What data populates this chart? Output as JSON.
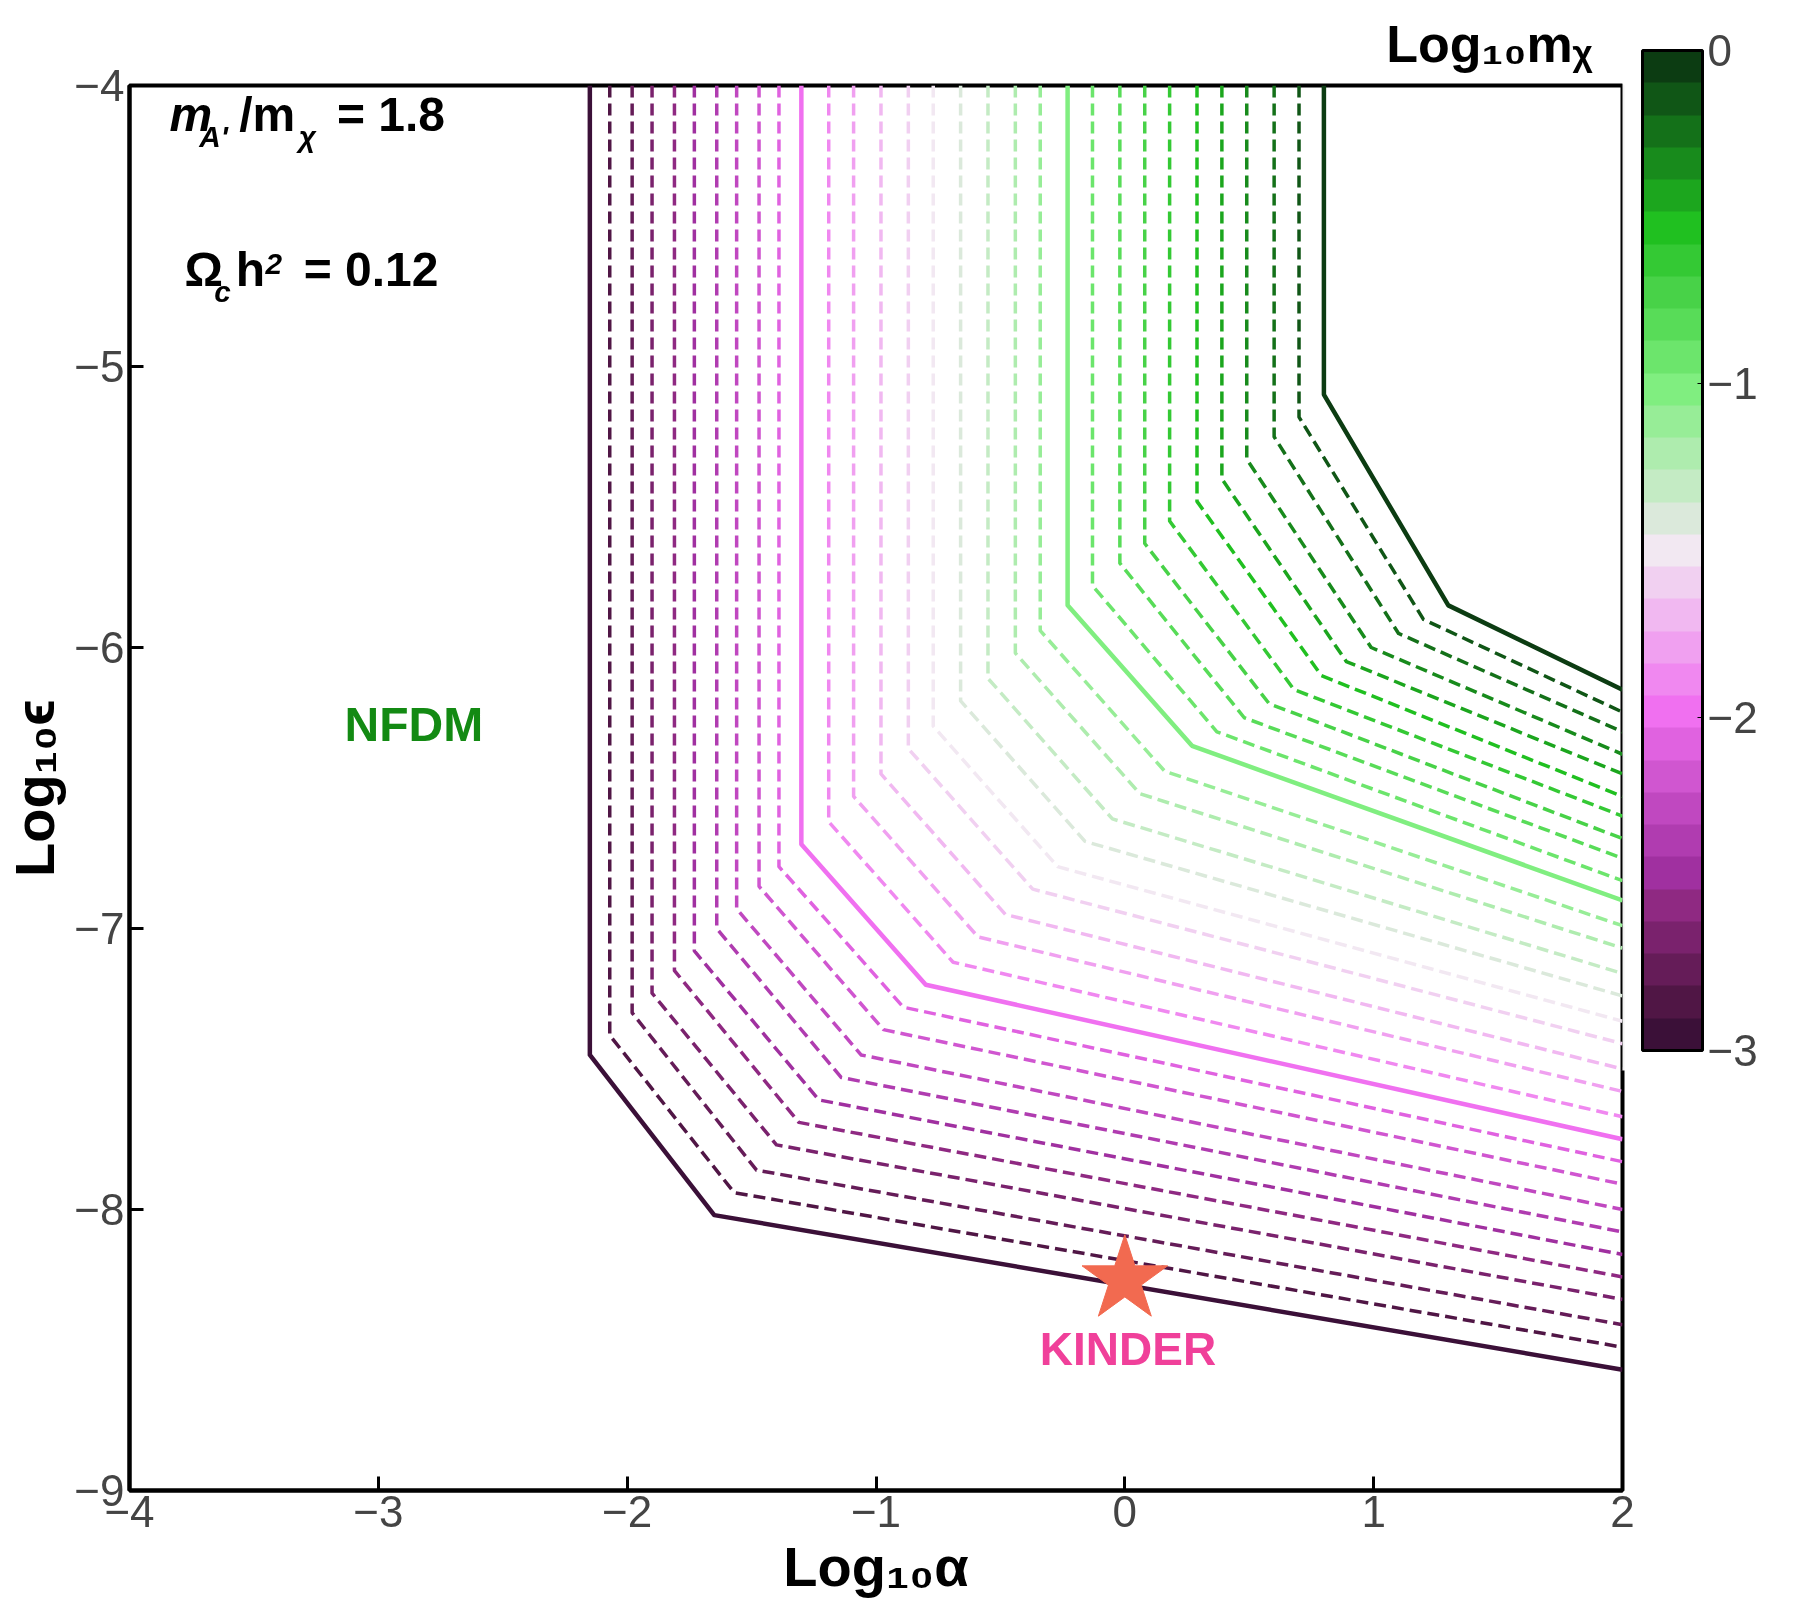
{
  "chart_data": {
    "type": "line",
    "xlabel": "Log₁₀α",
    "ylabel": "Log₁₀ϵ",
    "clabel": "Log₁₀mᵪ",
    "xlim": [
      -4,
      2
    ],
    "ylim": [
      -9,
      -4
    ],
    "xticks": [
      {
        "value": -4,
        "label": "−4"
      },
      {
        "value": -3,
        "label": "−3"
      },
      {
        "value": -2,
        "label": "−2"
      },
      {
        "value": -1,
        "label": "−1"
      },
      0,
      1,
      2
    ],
    "yticks": [
      {
        "value": -9,
        "label": "−9"
      },
      {
        "value": -8,
        "label": "−8"
      },
      {
        "value": -7,
        "label": "−7"
      },
      {
        "value": -6,
        "label": "−6"
      },
      {
        "value": -5,
        "label": "−5"
      },
      {
        "value": -4,
        "label": "−4"
      }
    ],
    "clim": [
      -3,
      0
    ],
    "cticks": [
      -3,
      -2,
      -1,
      0
    ],
    "grid": false,
    "line_style": "dashed",
    "annotations": [
      "m$_{A'}$/m$_{χ}$ = 1.8",
      "Ω$_{c}$h$^{2}$ = 0.12",
      "NFDM"
    ],
    "series": [
      {
        "color": "#3b1038",
        "line_style": "solid",
        "x": [
          -2.15,
          -2.15,
          -1.65,
          2
        ],
        "values": [
          -4,
          -7.45,
          -8.02,
          -8.57
        ]
      },
      {
        "color": "#501645",
        "x": [
          -2.07,
          -2.07,
          -1.57,
          2
        ],
        "values": [
          -4,
          -7.38,
          -7.94,
          -8.49
        ]
      },
      {
        "color": "#651c58",
        "x": [
          -1.98,
          -1.98,
          -1.48,
          2
        ],
        "values": [
          -4,
          -7.3,
          -7.86,
          -8.41
        ]
      },
      {
        "color": "#7a226d",
        "x": [
          -1.9,
          -1.9,
          -1.4,
          2
        ],
        "values": [
          -4,
          -7.23,
          -7.77,
          -8.32
        ]
      },
      {
        "color": "#8f2982",
        "x": [
          -1.81,
          -1.81,
          -1.31,
          2
        ],
        "values": [
          -4,
          -7.15,
          -7.69,
          -8.24
        ]
      },
      {
        "color": "#a030a0",
        "x": [
          -1.73,
          -1.73,
          -1.23,
          2
        ],
        "values": [
          -4,
          -7.08,
          -7.61,
          -8.16
        ]
      },
      {
        "color": "#b03cb0",
        "x": [
          -1.64,
          -1.64,
          -1.14,
          2
        ],
        "values": [
          -4,
          -7.0,
          -7.53,
          -8.08
        ]
      },
      {
        "color": "#c048c0",
        "x": [
          -1.56,
          -1.56,
          -1.06,
          2
        ],
        "values": [
          -4,
          -6.93,
          -7.45,
          -8.0
        ]
      },
      {
        "color": "#d056d0",
        "x": [
          -1.47,
          -1.47,
          -0.97,
          2
        ],
        "values": [
          -4,
          -6.85,
          -7.36,
          -7.91
        ]
      },
      {
        "color": "#e062e0",
        "x": [
          -1.39,
          -1.39,
          -0.89,
          2
        ],
        "values": [
          -4,
          -6.78,
          -7.28,
          -7.83
        ]
      },
      {
        "color": "#f070f0",
        "line_style": "solid",
        "x": [
          -1.3,
          -1.3,
          -0.8,
          2
        ],
        "values": [
          -4,
          -6.7,
          -7.2,
          -7.75
        ]
      },
      {
        "color": "#f088f0",
        "x": [
          -1.19,
          -1.19,
          -0.69,
          2
        ],
        "values": [
          -4,
          -6.62,
          -7.12,
          -7.67
        ]
      },
      {
        "color": "#f0a0f0",
        "x": [
          -1.09,
          -1.09,
          -0.59,
          2
        ],
        "values": [
          -4,
          -6.53,
          -7.03,
          -7.58
        ]
      },
      {
        "color": "#f1b8f1",
        "x": [
          -0.98,
          -0.98,
          -0.48,
          2
        ],
        "values": [
          -4,
          -6.45,
          -6.95,
          -7.5
        ]
      },
      {
        "color": "#f1d0f1",
        "x": [
          -0.87,
          -0.87,
          -0.37,
          2
        ],
        "values": [
          -4,
          -6.36,
          -6.86,
          -7.41
        ]
      },
      {
        "color": "#f2e8f2",
        "x": [
          -0.77,
          -0.77,
          -0.27,
          2
        ],
        "values": [
          -4,
          -6.28,
          -6.78,
          -7.33
        ]
      },
      {
        "color": "#dbe9db",
        "x": [
          -0.66,
          -0.66,
          -0.16,
          2
        ],
        "values": [
          -4,
          -6.19,
          -6.69,
          -7.24
        ]
      },
      {
        "color": "#c4ebc4",
        "x": [
          -0.55,
          -0.55,
          -0.05,
          2
        ],
        "values": [
          -4,
          -6.11,
          -6.61,
          -7.16
        ]
      },
      {
        "color": "#aeecae",
        "x": [
          -0.44,
          -0.44,
          0.06,
          2
        ],
        "values": [
          -4,
          -6.02,
          -6.52,
          -7.07
        ]
      },
      {
        "color": "#97ed97",
        "x": [
          -0.34,
          -0.34,
          0.16,
          2
        ],
        "values": [
          -4,
          -5.94,
          -6.44,
          -6.99
        ]
      },
      {
        "color": "#80ee80",
        "line_style": "solid",
        "x": [
          -0.23,
          -0.23,
          0.27,
          2
        ],
        "values": [
          -4,
          -5.85,
          -6.35,
          -6.9
        ]
      },
      {
        "color": "#6ce56c",
        "x": [
          -0.13,
          -0.13,
          0.37,
          2
        ],
        "values": [
          -4,
          -5.78,
          -6.3,
          -6.83
        ]
      },
      {
        "color": "#58dc58",
        "x": [
          -0.02,
          -0.02,
          0.48,
          2
        ],
        "values": [
          -4,
          -5.7,
          -6.25,
          -6.75
        ]
      },
      {
        "color": "#48d248",
        "x": [
          0.08,
          0.08,
          0.58,
          2
        ],
        "values": [
          -4,
          -5.63,
          -6.2,
          -6.68
        ]
      },
      {
        "color": "#34c934",
        "x": [
          0.18,
          0.18,
          0.68,
          2
        ],
        "values": [
          -4,
          -5.55,
          -6.15,
          -6.6
        ]
      },
      {
        "color": "#20c020",
        "x": [
          0.29,
          0.29,
          0.79,
          2
        ],
        "values": [
          -4,
          -5.48,
          -6.1,
          -6.53
        ]
      },
      {
        "color": "#1ca61e",
        "x": [
          0.39,
          0.39,
          0.89,
          2
        ],
        "values": [
          -4,
          -5.4,
          -6.05,
          -6.45
        ]
      },
      {
        "color": "#188b1c",
        "x": [
          0.49,
          0.49,
          0.99,
          2
        ],
        "values": [
          -4,
          -5.33,
          -6.0,
          -6.38
        ]
      },
      {
        "color": "#147119",
        "x": [
          0.6,
          0.6,
          1.1,
          2
        ],
        "values": [
          -4,
          -5.25,
          -5.95,
          -6.3
        ]
      },
      {
        "color": "#105616",
        "x": [
          0.7,
          0.7,
          1.2,
          2
        ],
        "values": [
          -4,
          -5.18,
          -5.9,
          -6.23
        ]
      },
      {
        "color": "#0c3c12",
        "line_style": "solid",
        "x": [
          0.8,
          0.8,
          1.3,
          2
        ],
        "values": [
          -4,
          -5.1,
          -5.85,
          -6.15
        ]
      },
      {
        "name": "KINDER",
        "type": "scatter",
        "marker": "star",
        "color": "#f26a50",
        "x": [
          0
        ],
        "values": [
          -8.25
        ]
      }
    ]
  }
}
